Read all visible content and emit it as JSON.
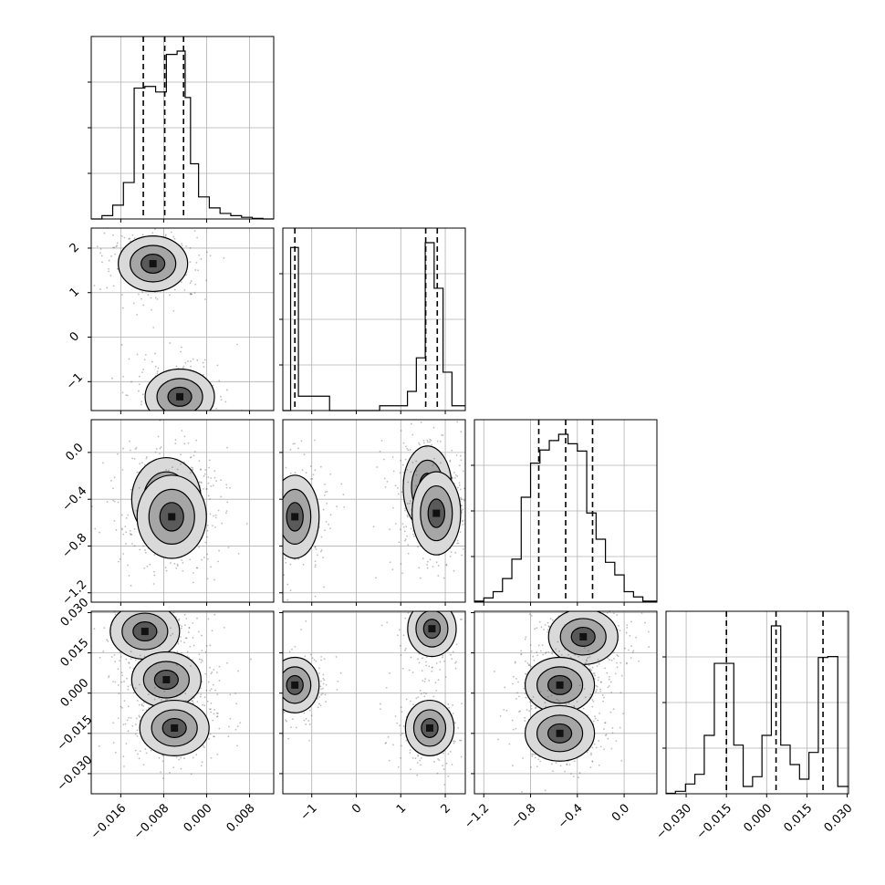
{
  "chart_data": {
    "type": "corner",
    "title": "",
    "grid": true,
    "parameters": [
      {
        "range": [
          -0.0215,
          0.0125
        ],
        "ticks": [
          "−0.016",
          "−0.008",
          "0.000",
          "0.008"
        ],
        "tick_values": [
          -0.016,
          -0.008,
          0.0,
          0.008
        ],
        "quantiles": [
          -0.0118,
          -0.0078,
          -0.0043
        ],
        "histogram": [
          {
            "x": -0.0205,
            "count": 0
          },
          {
            "x": -0.0185,
            "count": 6
          },
          {
            "x": -0.0165,
            "count": 25
          },
          {
            "x": -0.0145,
            "count": 66
          },
          {
            "x": -0.0125,
            "count": 237
          },
          {
            "x": -0.0105,
            "count": 240
          },
          {
            "x": -0.0085,
            "count": 230
          },
          {
            "x": -0.0065,
            "count": 298
          },
          {
            "x": -0.0045,
            "count": 304
          },
          {
            "x": -0.0035,
            "count": 220
          },
          {
            "x": -0.0025,
            "count": 100
          },
          {
            "x": -0.0005,
            "count": 40
          },
          {
            "x": 0.0015,
            "count": 20
          },
          {
            "x": 0.0035,
            "count": 10
          },
          {
            "x": 0.0055,
            "count": 6
          },
          {
            "x": 0.0075,
            "count": 3
          },
          {
            "x": 0.0095,
            "count": 1
          },
          {
            "x": 0.0115,
            "count": 0
          }
        ]
      },
      {
        "range": [
          -1.65,
          2.45
        ],
        "ticks": [
          "−1",
          "0",
          "1",
          "2"
        ],
        "tick_values": [
          -1,
          0,
          1,
          2
        ],
        "quantiles": [
          -1.38,
          1.56,
          1.82
        ],
        "histogram": [
          {
            "x": -1.55,
            "count": 0
          },
          {
            "x": -1.4,
            "count": 340
          },
          {
            "x": -1.2,
            "count": 30
          },
          {
            "x": 0.0,
            "count": 0
          },
          {
            "x": 1.05,
            "count": 10
          },
          {
            "x": 1.25,
            "count": 40
          },
          {
            "x": 1.45,
            "count": 110
          },
          {
            "x": 1.65,
            "count": 350
          },
          {
            "x": 1.85,
            "count": 255
          },
          {
            "x": 2.05,
            "count": 80
          },
          {
            "x": 2.25,
            "count": 10
          }
        ]
      },
      {
        "range": [
          -1.28,
          0.28
        ],
        "ticks": [
          "−1.2",
          "−0.8",
          "−0.4",
          "0.0"
        ],
        "tick_values": [
          -1.2,
          -0.8,
          -0.4,
          0.0
        ],
        "quantiles": [
          -0.73,
          -0.5,
          -0.27
        ],
        "histogram": [
          {
            "x": -1.24,
            "count": 2
          },
          {
            "x": -1.16,
            "count": 8
          },
          {
            "x": -1.08,
            "count": 20
          },
          {
            "x": -1.0,
            "count": 45
          },
          {
            "x": -0.92,
            "count": 82
          },
          {
            "x": -0.84,
            "count": 200
          },
          {
            "x": -0.76,
            "count": 265
          },
          {
            "x": -0.68,
            "count": 290
          },
          {
            "x": -0.6,
            "count": 308
          },
          {
            "x": -0.52,
            "count": 320
          },
          {
            "x": -0.44,
            "count": 302
          },
          {
            "x": -0.36,
            "count": 288
          },
          {
            "x": -0.28,
            "count": 170
          },
          {
            "x": -0.2,
            "count": 120
          },
          {
            "x": -0.12,
            "count": 76
          },
          {
            "x": -0.04,
            "count": 52
          },
          {
            "x": 0.04,
            "count": 20
          },
          {
            "x": 0.12,
            "count": 10
          },
          {
            "x": 0.2,
            "count": 2
          }
        ]
      },
      {
        "range": [
          -0.0375,
          0.0305
        ],
        "ticks": [
          "−0.030",
          "−0.015",
          "0.000",
          "0.015",
          "0.030"
        ],
        "tick_values": [
          -0.03,
          -0.015,
          0.0,
          0.015,
          0.03
        ],
        "quantiles": [
          -0.015,
          0.0035,
          0.021
        ],
        "histogram": [
          {
            "x": -0.036,
            "count": 1
          },
          {
            "x": -0.032,
            "count": 5
          },
          {
            "x": -0.0285,
            "count": 20
          },
          {
            "x": -0.025,
            "count": 40
          },
          {
            "x": -0.0215,
            "count": 120
          },
          {
            "x": -0.0175,
            "count": 268
          },
          {
            "x": -0.014,
            "count": 268
          },
          {
            "x": -0.0105,
            "count": 100
          },
          {
            "x": -0.007,
            "count": 15
          },
          {
            "x": -0.0035,
            "count": 35
          },
          {
            "x": 0.0,
            "count": 120
          },
          {
            "x": 0.0035,
            "count": 345
          },
          {
            "x": 0.007,
            "count": 100
          },
          {
            "x": 0.0105,
            "count": 60
          },
          {
            "x": 0.014,
            "count": 30
          },
          {
            "x": 0.0175,
            "count": 85
          },
          {
            "x": 0.021,
            "count": 280
          },
          {
            "x": 0.0245,
            "count": 282
          },
          {
            "x": 0.0285,
            "count": 15
          }
        ]
      }
    ],
    "clusters": [
      [
        [
          -0.01,
          1.65
        ],
        [
          -0.005,
          -1.34
        ]
      ],
      [
        [
          -0.0075,
          -0.4
        ],
        [
          -0.0065,
          -0.55
        ]
      ],
      [
        [
          -1.38,
          -0.55
        ],
        [
          1.6,
          -0.3
        ],
        [
          1.8,
          -0.52
        ]
      ],
      [
        [
          -0.0115,
          0.023
        ],
        [
          -0.0075,
          0.005
        ],
        [
          -0.006,
          -0.013
        ]
      ],
      [
        [
          -1.38,
          0.003
        ],
        [
          1.7,
          0.024
        ],
        [
          1.65,
          -0.013
        ]
      ],
      [
        [
          -0.35,
          0.021
        ],
        [
          -0.55,
          0.003
        ],
        [
          -0.55,
          -0.015
        ]
      ]
    ]
  }
}
